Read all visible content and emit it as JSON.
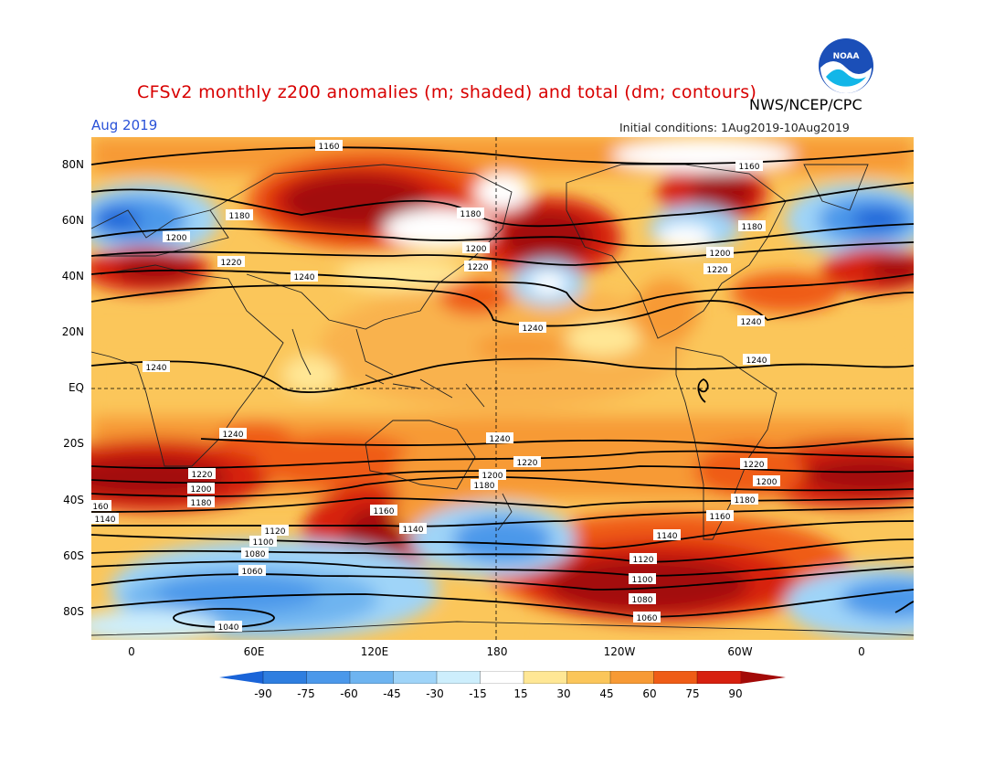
{
  "header": {
    "title": "CFSv2 monthly z200 anomalies (m; shaded) and total (dm; contours)",
    "agency": "NWS/NCEP/CPC",
    "month": "Aug 2019",
    "initial_conditions": "Initial conditions: 1Aug2019-10Aug2019",
    "logo_text": "NOAA"
  },
  "lat_labels": [
    "80N",
    "60N",
    "40N",
    "20N",
    "EQ",
    "20S",
    "40S",
    "60S",
    "80S"
  ],
  "lon_labels": [
    "0",
    "60E",
    "120E",
    "180",
    "120W",
    "60W",
    "0"
  ],
  "colorbar": {
    "labels": [
      "-90",
      "-75",
      "-60",
      "-45",
      "-30",
      "-15",
      "15",
      "30",
      "45",
      "60",
      "75",
      "90"
    ],
    "colors": [
      "#1a64d8",
      "#2e7ee0",
      "#4b98ea",
      "#6eb4f0",
      "#9fd4f8",
      "#cdeefc",
      "#ffffff",
      "#ffe795",
      "#fbc65a",
      "#f79a35",
      "#ef5c16",
      "#d7200f",
      "#a30a08"
    ]
  },
  "contour_labels": [
    {
      "text": "1160"
    },
    {
      "text": "1160"
    },
    {
      "text": "1180"
    },
    {
      "text": "1180"
    },
    {
      "text": "1180"
    },
    {
      "text": "1200"
    },
    {
      "text": "1200"
    },
    {
      "text": "1200"
    },
    {
      "text": "1220"
    },
    {
      "text": "1220"
    },
    {
      "text": "1220"
    },
    {
      "text": "1240"
    },
    {
      "text": "1240"
    },
    {
      "text": "1240"
    },
    {
      "text": "1240"
    },
    {
      "text": "1240"
    },
    {
      "text": "1240"
    },
    {
      "text": "1240"
    },
    {
      "text": "1220"
    },
    {
      "text": "1220"
    },
    {
      "text": "1220"
    },
    {
      "text": "1200"
    },
    {
      "text": "1200"
    },
    {
      "text": "1200"
    },
    {
      "text": "1180"
    },
    {
      "text": "1180"
    },
    {
      "text": "1180"
    },
    {
      "text": "160"
    },
    {
      "text": "1140"
    },
    {
      "text": "1160"
    },
    {
      "text": "1160"
    },
    {
      "text": "1140"
    },
    {
      "text": "1140"
    },
    {
      "text": "1120"
    },
    {
      "text": "1120"
    },
    {
      "text": "1100"
    },
    {
      "text": "1100"
    },
    {
      "text": "1080"
    },
    {
      "text": "1080"
    },
    {
      "text": "1060"
    },
    {
      "text": "1060"
    },
    {
      "text": "1040"
    }
  ]
}
